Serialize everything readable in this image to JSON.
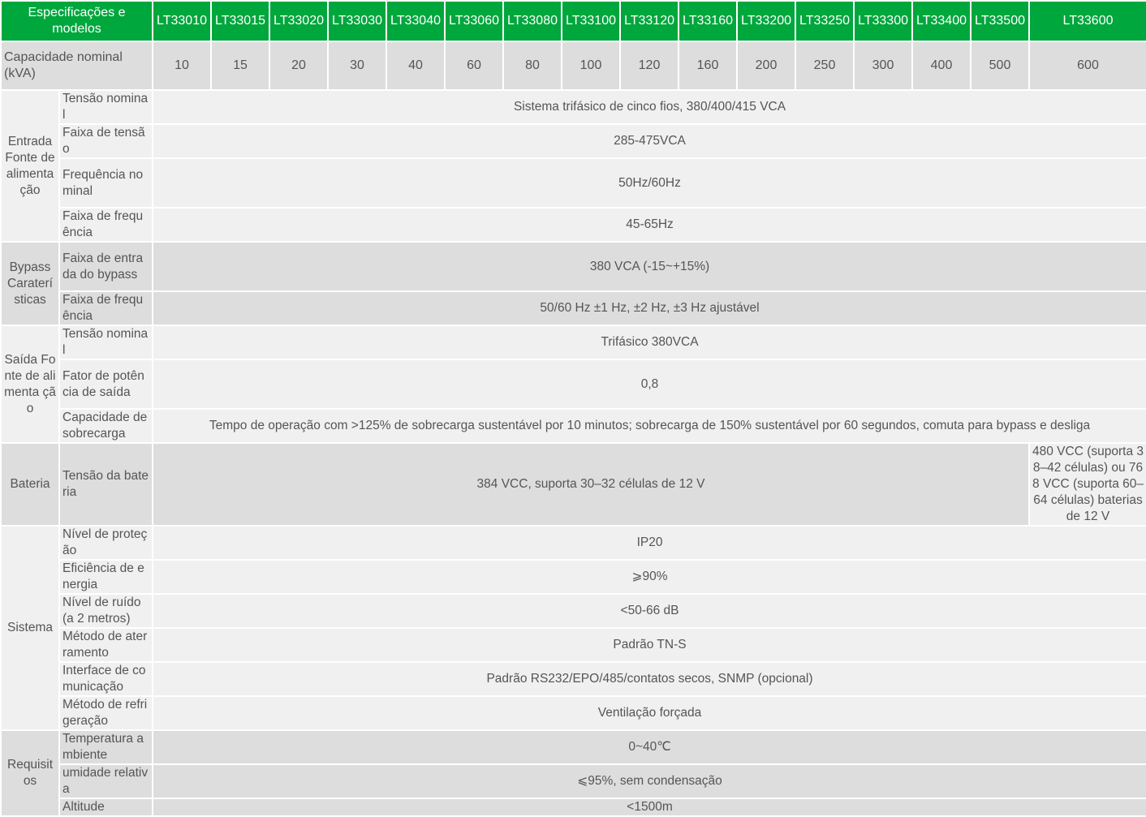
{
  "header": {
    "title": "Especificações e modelos",
    "models": [
      "LT33010",
      "LT33015",
      "LT33020",
      "LT33030",
      "LT33040",
      "LT33060",
      "LT33080",
      "LT33100",
      "LT33120",
      "LT33160",
      "LT33200",
      "LT33250",
      "LT33300",
      "LT33400",
      "LT33500",
      "LT33600"
    ]
  },
  "capacity": {
    "label": "Capacidade nominal (kVA)",
    "values": [
      "10",
      "15",
      "20",
      "30",
      "40",
      "60",
      "80",
      "100",
      "120",
      "160",
      "200",
      "250",
      "300",
      "400",
      "500",
      "600"
    ]
  },
  "colors": {
    "header_green": "#00a73c",
    "gray": "#dcdddc",
    "light": "#eff0ef",
    "text": "#555555"
  },
  "groups": [
    {
      "label": "Entrada Fonte de alimenta ção",
      "shade": "light",
      "rows": [
        {
          "param": "Tensão nominal",
          "value": "Sistema trifásico de cinco fios, 380/400/415 VCA",
          "h": 41
        },
        {
          "param": "Faixa de tensão",
          "value": "285-475VCA",
          "h": 41
        },
        {
          "param": "Frequência nominal",
          "value": "50Hz/60Hz",
          "h": 61
        },
        {
          "param": "Faixa de frequência",
          "value": "45-65Hz",
          "h": 41
        }
      ]
    },
    {
      "label": "Bypass Caraterí sticas",
      "shade": "gray",
      "rows": [
        {
          "param": "Faixa de entrada do bypass",
          "value": "380 VCA (-15~+15%)",
          "h": 61
        },
        {
          "param": "Faixa de frequência",
          "value": "50/60 Hz ±1 Hz, ±2 Hz, ±3 Hz ajustável",
          "h": 41
        }
      ]
    },
    {
      "label": "Saída Fonte de alimenta ção",
      "shade": "light",
      "rows": [
        {
          "param": "Tensão nominal",
          "value": "Trifásico 380VCA",
          "h": 41
        },
        {
          "param": "Fator de potência de saída",
          "value": "0,8",
          "h": 61
        },
        {
          "param": "Capacidade de sobrecarga",
          "value": "Tempo de operação com >125% de sobrecarga sustentável por 10 minutos; sobrecarga de 150% sustentável por 60 segundos, comuta para bypass e desliga",
          "h": 41
        }
      ]
    },
    {
      "label": "Bateria",
      "shade": "gray",
      "rows": [
        {
          "param": "Tensão da bateria",
          "value": "384 VCC, suporta 30–32 células de 12 V",
          "last": "480 VCC (suporta 38–42 células) ou 768 VCC (suporta 60–64 células) baterias de 12 V",
          "h": 73
        }
      ]
    },
    {
      "label": "Sistema",
      "shade": "light",
      "rows": [
        {
          "param": "Nível de proteção",
          "value": "IP20",
          "h": 41
        },
        {
          "param": "Eficiência de energia",
          "value": "⩾90%",
          "h": 41
        },
        {
          "param": "Nível de ruído (a 2 metros)",
          "value": "<50-66 dB",
          "h": 41
        },
        {
          "param": "Método de aterramento",
          "value": "Padrão TN-S",
          "h": 41
        },
        {
          "param": "Interface de comunicação",
          "value": "Padrão RS232/EPO/485/contatos secos, SNMP (opcional)",
          "h": 41
        },
        {
          "param": "Método de refrigeração",
          "value": "Ventilação forçada",
          "h": 41
        }
      ]
    },
    {
      "label": "Requisitos",
      "shade": "gray",
      "rows": [
        {
          "param": "Temperatura ambiente",
          "value": "0~40℃",
          "h": 42
        },
        {
          "param": "umidade relativa",
          "value": "⩽95%, sem condensação",
          "h": 41
        },
        {
          "param": "Altitude",
          "value": "<1500m",
          "h": 22
        }
      ]
    }
  ]
}
